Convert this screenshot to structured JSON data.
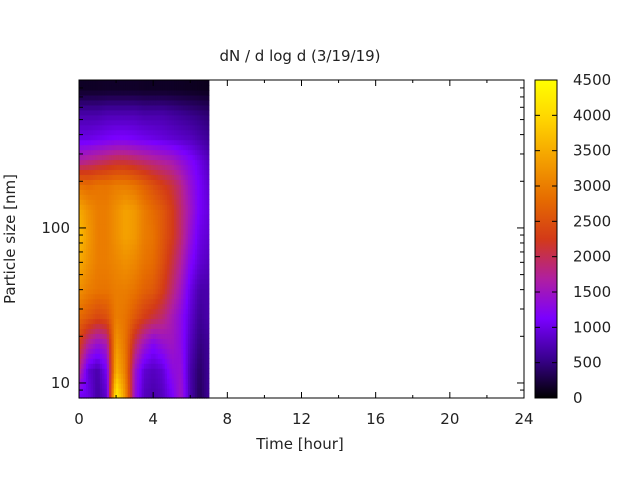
{
  "chart_data": {
    "type": "heatmap",
    "title": "dN / d log d (3/19/19)",
    "xlabel": "Time [hour]",
    "ylabel": "Particle size [nm]",
    "xlim": [
      0,
      24
    ],
    "x_ticks": [
      0,
      4,
      8,
      12,
      16,
      20,
      24
    ],
    "x_tick_labels": [
      "0",
      "4",
      "8",
      "12",
      "16",
      "20",
      "24"
    ],
    "y_scale": "log",
    "ylim": [
      8,
      900
    ],
    "y_ticks": [
      10,
      100
    ],
    "y_tick_labels": [
      "10",
      "100"
    ],
    "colorbar": {
      "range": [
        0,
        4500
      ],
      "ticks": [
        0,
        500,
        1000,
        1500,
        2000,
        2500,
        3000,
        3500,
        4000,
        4500
      ],
      "tick_labels": [
        "0",
        "500",
        "1000",
        "1500",
        "2000",
        "2500",
        "3000",
        "3500",
        "4000",
        "4500"
      ],
      "palette": [
        "#000000",
        "#3a0090",
        "#7a00ff",
        "#b01fa0",
        "#d33a18",
        "#e66c00",
        "#f4a000",
        "#ffd400",
        "#ffff00"
      ]
    },
    "data_extent": {
      "time_hours": [
        0,
        7
      ],
      "size_nm": [
        8,
        900
      ]
    },
    "approx_structure": {
      "times": [
        0,
        0.5,
        1,
        1.5,
        2,
        2.5,
        3,
        3.5,
        4,
        4.5,
        5,
        5.5,
        6,
        6.5,
        7
      ],
      "sizes": [
        8.5,
        12,
        18,
        27,
        40,
        60,
        90,
        130,
        190,
        270,
        380,
        540,
        780
      ],
      "values": [
        [
          1100,
          1000,
          650,
          900,
          4300,
          3200,
          1400,
          800,
          700,
          800,
          1100,
          1500,
          700,
          350,
          600
        ],
        [
          1800,
          900,
          700,
          1100,
          3600,
          3000,
          1500,
          900,
          800,
          900,
          1300,
          1400,
          700,
          400,
          600
        ],
        [
          2300,
          1700,
          1400,
          1600,
          3300,
          2900,
          2000,
          1500,
          1200,
          1400,
          1500,
          1300,
          800,
          500,
          600
        ],
        [
          2800,
          2600,
          2400,
          2500,
          3000,
          2900,
          2600,
          2300,
          2100,
          1900,
          1600,
          1300,
          900,
          600,
          700
        ],
        [
          3200,
          3000,
          2900,
          2900,
          3000,
          3000,
          2900,
          2700,
          2600,
          2300,
          1900,
          1500,
          1000,
          700,
          700
        ],
        [
          3500,
          3200,
          3000,
          3000,
          3100,
          3200,
          3100,
          2900,
          2800,
          2500,
          2100,
          1700,
          1200,
          900,
          800
        ],
        [
          3700,
          3300,
          3000,
          3000,
          3200,
          3400,
          3300,
          3000,
          2900,
          2600,
          2300,
          1900,
          1400,
          1000,
          900
        ],
        [
          3500,
          3200,
          3000,
          3000,
          3200,
          3400,
          3300,
          3000,
          2800,
          2600,
          2300,
          1900,
          1500,
          1100,
          950
        ],
        [
          2900,
          2800,
          2900,
          2900,
          3000,
          3000,
          2900,
          2700,
          2500,
          2300,
          2100,
          1800,
          1400,
          1100,
          900
        ],
        [
          1700,
          1800,
          1900,
          2000,
          2100,
          2100,
          2000,
          1900,
          1800,
          1700,
          1600,
          1400,
          1200,
          1000,
          800
        ],
        [
          1000,
          1000,
          1050,
          1100,
          1150,
          1150,
          1100,
          1050,
          1000,
          950,
          900,
          850,
          800,
          700,
          600
        ],
        [
          700,
          700,
          700,
          750,
          750,
          750,
          750,
          700,
          700,
          700,
          650,
          600,
          550,
          500,
          450
        ],
        [
          150,
          150,
          150,
          160,
          160,
          160,
          160,
          150,
          150,
          150,
          150,
          140,
          130,
          120,
          110
        ]
      ]
    }
  }
}
